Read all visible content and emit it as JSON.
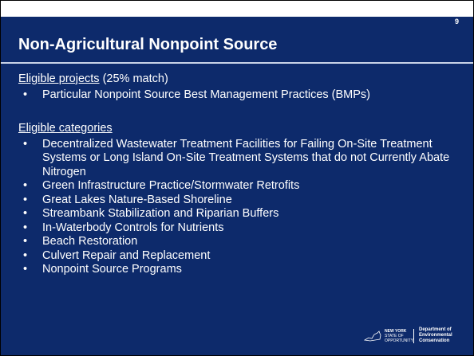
{
  "page_number": "9",
  "title": "Non-Agricultural Nonpoint Source",
  "sections": [
    {
      "heading": "Eligible projects",
      "note": "(25% match)",
      "items": [
        "Particular Nonpoint Source Best Management Practices (BMPs)"
      ]
    },
    {
      "heading": "Eligible categories",
      "items": [
        "Decentralized Wastewater Treatment Facilities for Failing On-Site Treatment Systems or Long Island On-Site Treatment Systems that do not Currently Abate Nitrogen",
        "Green Infrastructure Practice/Stormwater Retrofits",
        "Great Lakes Nature-Based Shoreline",
        "Streambank Stabilization and Riparian Buffers",
        "In-Waterbody Controls for Nutrients",
        "Beach Restoration",
        "Culvert Repair and Replacement",
        "Nonpoint Source Programs"
      ]
    }
  ],
  "logo": {
    "state": "NEW YORK",
    "tagline": "STATE OF OPPORTUNITY",
    "agency": "Department of Environmental Conservation"
  }
}
